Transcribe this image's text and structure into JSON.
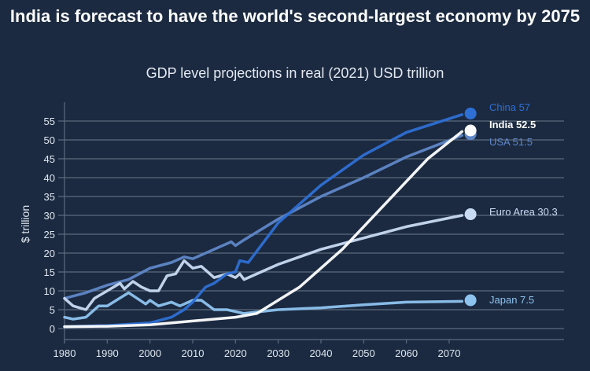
{
  "chart_data": {
    "type": "line",
    "title": "India is forecast to have the world's second-largest economy by 2075",
    "subtitle": "GDP level projections in real (2021) USD trillion",
    "xlabel": "",
    "ylabel": "$ trillion",
    "xlim": [
      1980,
      2075
    ],
    "ylim": [
      0,
      55
    ],
    "xticks": [
      1980,
      1990,
      2000,
      2010,
      2020,
      2030,
      2040,
      2050,
      2060,
      2070
    ],
    "yticks": [
      0,
      5,
      10,
      15,
      20,
      25,
      30,
      35,
      40,
      45,
      50,
      55
    ],
    "grid": true,
    "legend": "end-labels-right",
    "series": [
      {
        "name": "USA",
        "end_label": "USA 51.5",
        "color": "#5f87c8",
        "x": [
          1980,
          1985,
          1990,
          1995,
          2000,
          2005,
          2008,
          2010,
          2015,
          2019,
          2020,
          2022,
          2030,
          2040,
          2050,
          2060,
          2075
        ],
        "y": [
          8,
          9.5,
          11.5,
          13,
          16,
          17.5,
          19,
          18.5,
          21,
          23,
          22,
          23.5,
          29,
          35,
          40,
          45.5,
          51.5
        ]
      },
      {
        "name": "Euro Area",
        "end_label": "Euro Area 30.3",
        "color": "#c9dbf3",
        "x": [
          1980,
          1982,
          1985,
          1987,
          1990,
          1993,
          1994,
          1996,
          1998,
          2000,
          2002,
          2004,
          2006,
          2008,
          2010,
          2012,
          2015,
          2018,
          2020,
          2021,
          2022,
          2030,
          2040,
          2050,
          2060,
          2075
        ],
        "y": [
          8,
          6,
          5,
          8,
          10,
          12,
          10.5,
          12.5,
          11,
          10,
          10,
          14,
          14.5,
          18,
          16,
          16.5,
          13.5,
          14.5,
          13.5,
          14.5,
          13,
          17,
          21,
          24,
          27,
          30.3
        ]
      },
      {
        "name": "Japan",
        "end_label": "Japan 7.5",
        "color": "#8ec3ef",
        "x": [
          1980,
          1982,
          1985,
          1988,
          1990,
          1995,
          1999,
          2000,
          2002,
          2005,
          2007,
          2010,
          2012,
          2015,
          2018,
          2020,
          2022,
          2030,
          2040,
          2050,
          2060,
          2075
        ],
        "y": [
          3,
          2.5,
          3,
          6,
          6,
          9.5,
          6.5,
          7.5,
          6,
          7,
          6,
          7.5,
          7.5,
          5,
          5,
          4.5,
          4,
          5,
          5.5,
          6.3,
          7,
          7.5
        ]
      },
      {
        "name": "China",
        "end_label": "China 57",
        "color": "#2e6fd4",
        "x": [
          1980,
          1990,
          2000,
          2005,
          2008,
          2010,
          2013,
          2015,
          2018,
          2020,
          2021,
          2023,
          2030,
          2040,
          2050,
          2060,
          2075
        ],
        "y": [
          0.5,
          0.8,
          1.5,
          3,
          5,
          7,
          11,
          12,
          14.5,
          15,
          18,
          17.5,
          28,
          38,
          46,
          52,
          57
        ]
      },
      {
        "name": "India",
        "end_label": "India 52.5",
        "color": "#ffffff",
        "x": [
          1980,
          1990,
          2000,
          2010,
          2020,
          2025,
          2030,
          2035,
          2040,
          2045,
          2050,
          2055,
          2060,
          2065,
          2075
        ],
        "y": [
          0.5,
          0.6,
          1,
          2,
          3,
          4,
          7.5,
          11,
          16,
          21,
          27,
          33,
          39,
          45,
          52.5
        ]
      }
    ]
  }
}
